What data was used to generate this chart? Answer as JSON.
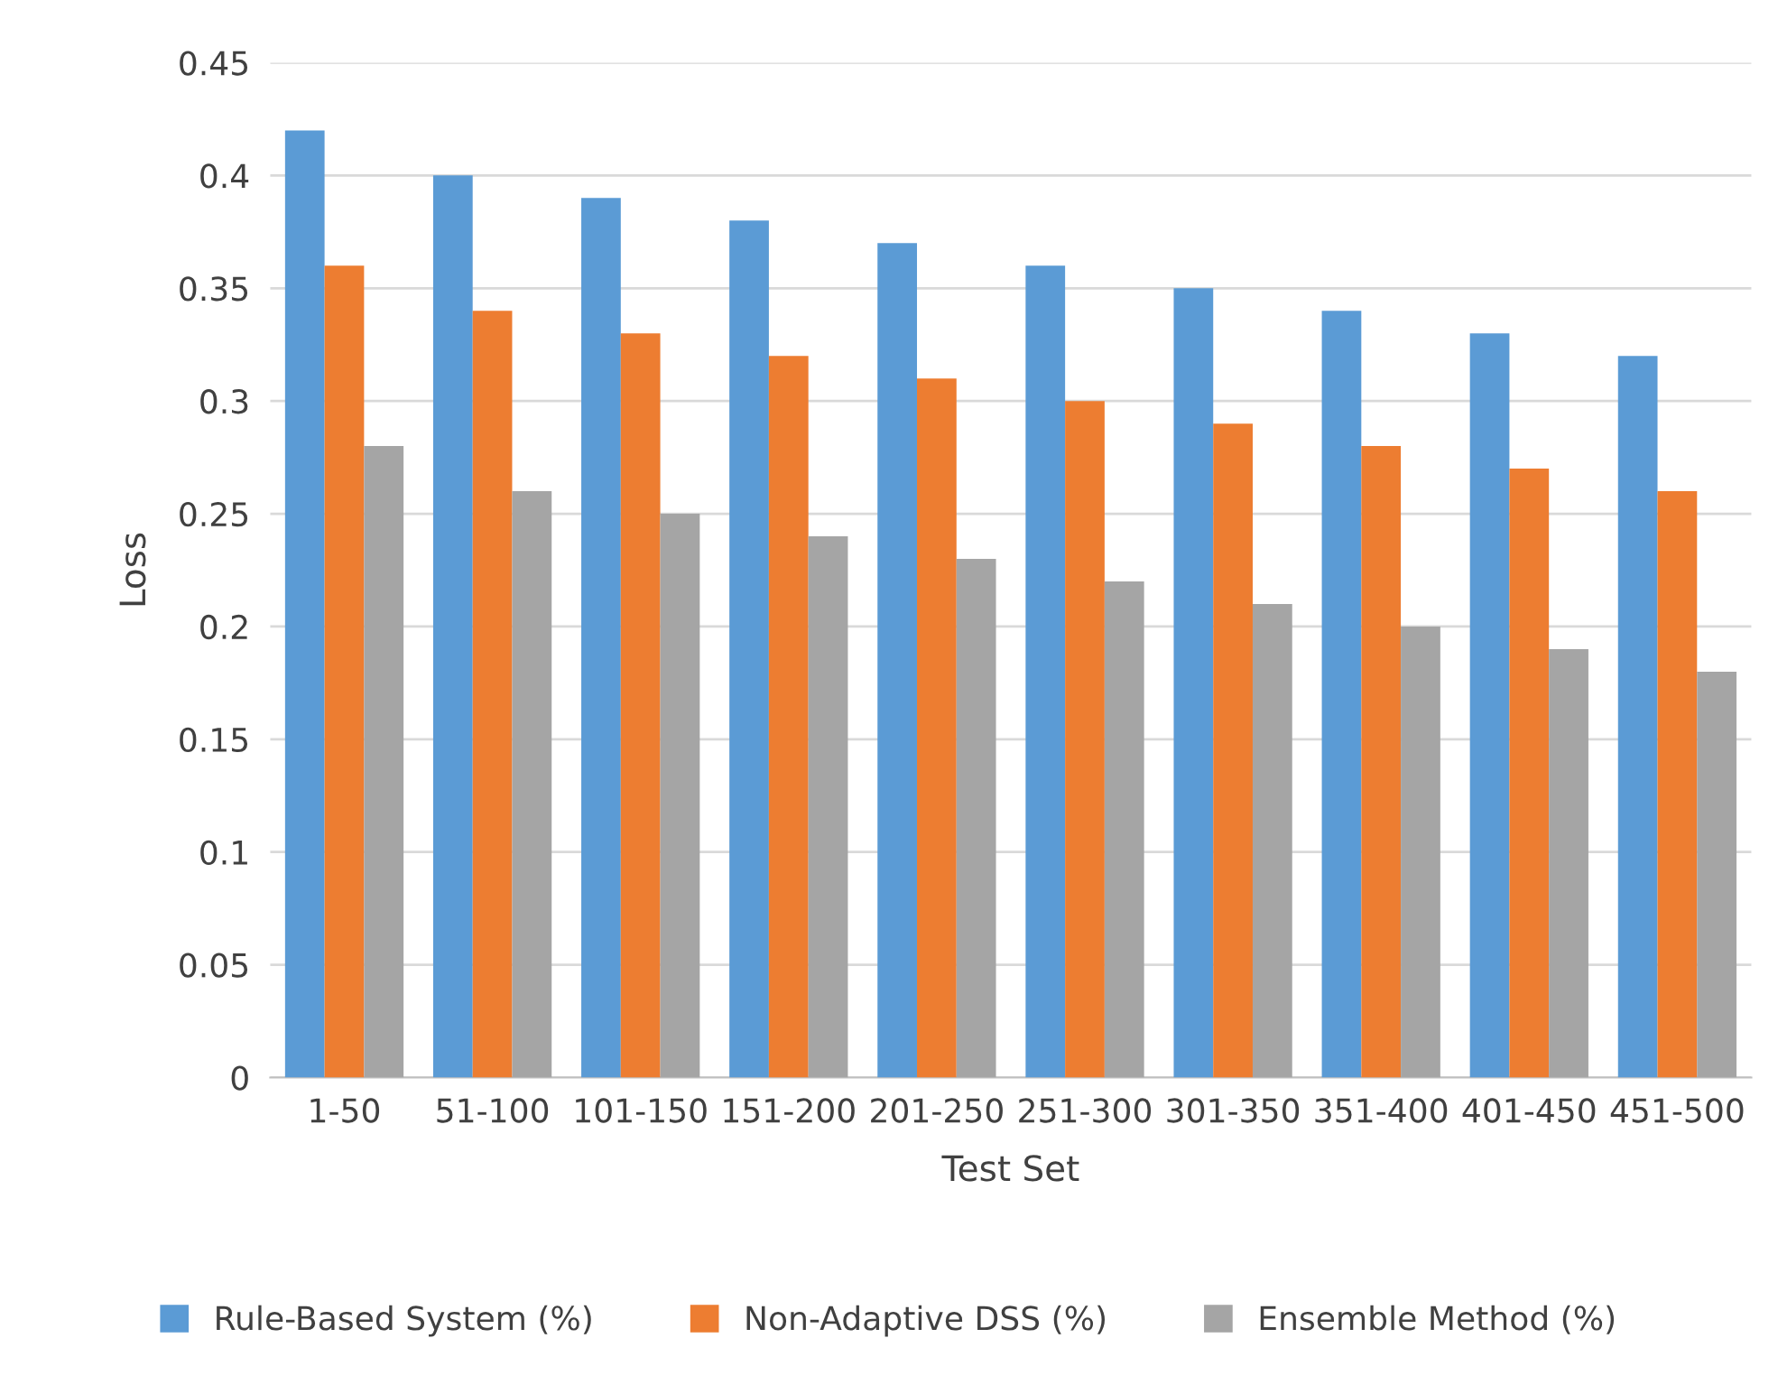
{
  "chart_data": {
    "type": "bar",
    "xlabel": "Test Set",
    "ylabel": "Loss",
    "categories": [
      "1-50",
      "51-100",
      "101-150",
      "151-200",
      "201-250",
      "251-300",
      "301-350",
      "351-400",
      "401-450",
      "451-500"
    ],
    "series": [
      {
        "name": "Rule-Based System (%)",
        "color": "#5b9bd5",
        "values": [
          0.42,
          0.4,
          0.39,
          0.38,
          0.37,
          0.36,
          0.35,
          0.34,
          0.33,
          0.32
        ]
      },
      {
        "name": "Non-Adaptive DSS (%)",
        "color": "#ed7d31",
        "values": [
          0.36,
          0.34,
          0.33,
          0.32,
          0.31,
          0.3,
          0.29,
          0.28,
          0.27,
          0.26
        ]
      },
      {
        "name": "Ensemble Method (%)",
        "color": "#a5a5a5",
        "values": [
          0.28,
          0.26,
          0.25,
          0.24,
          0.23,
          0.22,
          0.21,
          0.2,
          0.19,
          0.18
        ]
      }
    ],
    "ylim": [
      0,
      0.45
    ],
    "yticks": [
      0,
      0.05,
      0.1,
      0.15,
      0.2,
      0.25,
      0.3,
      0.35,
      0.4,
      0.45
    ],
    "grid": "y",
    "legend": "bottom"
  }
}
